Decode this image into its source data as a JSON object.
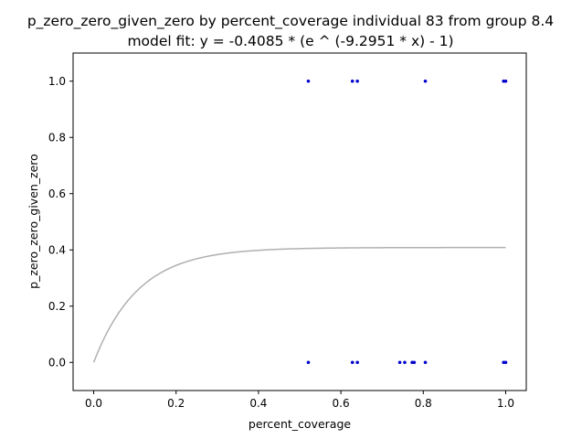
{
  "chart_data": {
    "type": "scatter",
    "title": "p_zero_zero_given_zero by percent_coverage individual 83 from group 8.4",
    "subtitle": "model fit: y = -0.4085 * (e ^ (-9.2951 * x) - 1)",
    "xlabel": "percent_coverage",
    "ylabel": "p_zero_zero_given_zero",
    "xlim": [
      -0.05,
      1.05
    ],
    "ylim": [
      -0.1,
      1.1
    ],
    "xticks": [
      0.0,
      0.2,
      0.4,
      0.6,
      0.8,
      1.0
    ],
    "xtick_labels": [
      "0.0",
      "0.2",
      "0.4",
      "0.6",
      "0.8",
      "1.0"
    ],
    "yticks": [
      0.0,
      0.2,
      0.4,
      0.6,
      0.8,
      1.0
    ],
    "ytick_labels": [
      "0.0",
      "0.2",
      "0.4",
      "0.6",
      "0.8",
      "1.0"
    ],
    "grid": false,
    "series": [
      {
        "kind": "scatter",
        "color": "#0000cc",
        "x": [
          0.521,
          0.628,
          0.64,
          0.805,
          0.995,
          1.0,
          0.521,
          0.628,
          0.64,
          0.743,
          0.755,
          0.773,
          0.778,
          0.805,
          0.995,
          1.0
        ],
        "y": [
          1,
          1,
          1,
          1,
          1,
          1,
          0,
          0,
          0,
          0,
          0,
          0,
          0,
          0,
          0,
          0
        ]
      },
      {
        "kind": "line",
        "color": "#b0b0b0",
        "model": {
          "a": 0.4085,
          "b": 9.2951
        },
        "x_range": [
          0.0,
          1.0
        ]
      }
    ]
  }
}
